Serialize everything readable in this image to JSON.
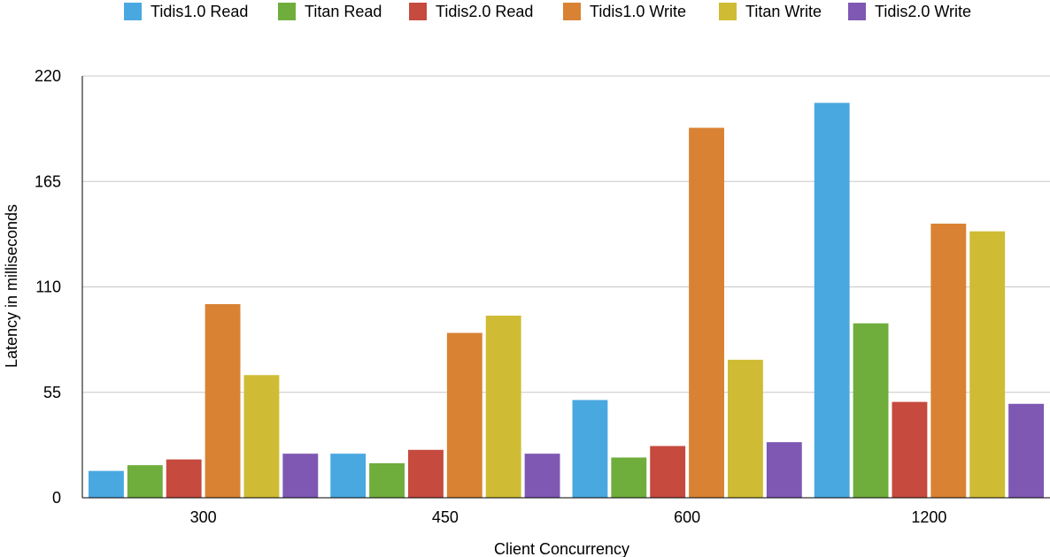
{
  "chart_data": {
    "type": "bar",
    "title": "",
    "xlabel": "Client Concurrency",
    "ylabel": "Latency in milliseconds",
    "categories": [
      "300",
      "450",
      "600",
      "1200"
    ],
    "ylim": [
      0,
      220
    ],
    "yticks": [
      0,
      55,
      110,
      165,
      220
    ],
    "grid": true,
    "legend_position": "top",
    "series": [
      {
        "name": "Tidis1.0 Read",
        "color": "#4aa8e0",
        "values": [
          14,
          23,
          51,
          206
        ]
      },
      {
        "name": "Titan Read",
        "color": "#6fae3c",
        "values": [
          17,
          18,
          21,
          91
        ]
      },
      {
        "name": "Tidis2.0 Read",
        "color": "#c64a3e",
        "values": [
          20,
          25,
          27,
          50
        ]
      },
      {
        "name": "Tidis1.0 Write",
        "color": "#d98233",
        "values": [
          101,
          86,
          193,
          143
        ]
      },
      {
        "name": "Titan Write",
        "color": "#cfbc34",
        "values": [
          64,
          95,
          72,
          139
        ]
      },
      {
        "name": "Tidis2.0 Write",
        "color": "#7e58b3",
        "values": [
          23,
          23,
          29,
          49
        ]
      }
    ]
  }
}
